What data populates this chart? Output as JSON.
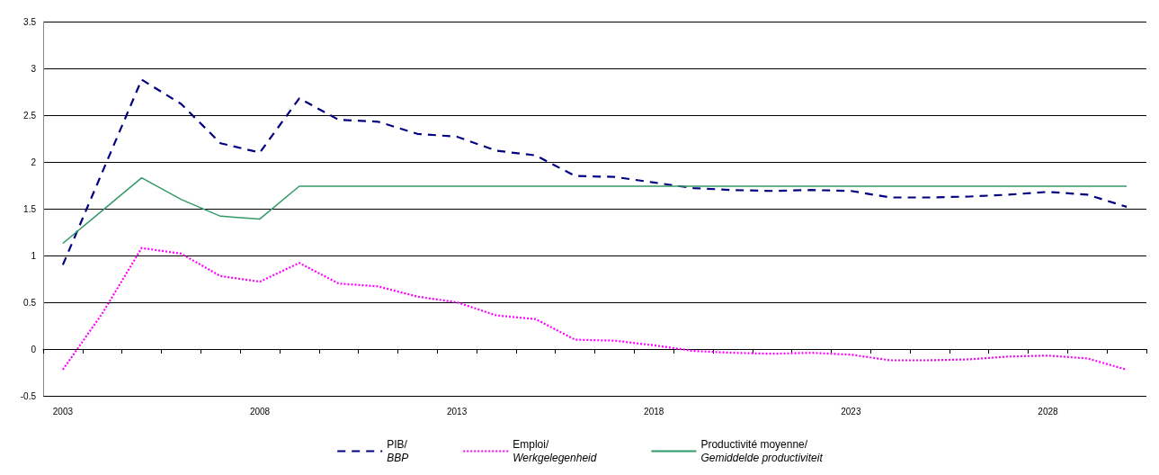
{
  "chart_data": {
    "type": "line",
    "categories": [
      "2003",
      null,
      null,
      null,
      null,
      "2008",
      null,
      null,
      null,
      null,
      "2013",
      null,
      null,
      null,
      null,
      "2018",
      null,
      null,
      null,
      null,
      "2023",
      null,
      null,
      null,
      null,
      "2028",
      null,
      null
    ],
    "series": [
      {
        "name": "PIB/\nBBP",
        "color": "#000080",
        "line_style": "dashed",
        "values": [
          0.9,
          1.89,
          2.88,
          2.62,
          2.2,
          2.1,
          2.68,
          2.45,
          2.43,
          2.3,
          2.27,
          2.12,
          2.07,
          1.85,
          1.84,
          1.78,
          1.72,
          1.7,
          1.69,
          1.7,
          1.69,
          1.62,
          1.62,
          1.63,
          1.65,
          1.68,
          1.65,
          1.52
        ]
      },
      {
        "name": "Emploi/\nWerkgelegenheid",
        "color": "#ff00ff",
        "line_style": "dotted",
        "values": [
          -0.22,
          0.38,
          1.08,
          1.02,
          0.78,
          0.72,
          0.92,
          0.7,
          0.67,
          0.56,
          0.5,
          0.36,
          0.32,
          0.1,
          0.09,
          0.04,
          -0.02,
          -0.04,
          -0.05,
          -0.04,
          -0.06,
          -0.12,
          -0.12,
          -0.11,
          -0.08,
          -0.07,
          -0.1,
          -0.22
        ]
      },
      {
        "name": "Productivité moyenne/\nGemiddelde productiviteit",
        "color": "#339966",
        "line_style": "solid",
        "values": [
          1.13,
          1.48,
          1.83,
          1.6,
          1.42,
          1.39,
          1.74,
          1.74,
          1.74,
          1.74,
          1.74,
          1.74,
          1.74,
          1.74,
          1.74,
          1.74,
          1.74,
          1.74,
          1.74,
          1.74,
          1.74,
          1.74,
          1.74,
          1.74,
          1.74,
          1.74,
          1.74,
          1.74
        ]
      }
    ],
    "ylim": [
      -0.5,
      3.5
    ],
    "yticks": [
      -0.5,
      0,
      0.5,
      1,
      1.5,
      2,
      2.5,
      3,
      3.5
    ],
    "grid": "y",
    "legend": "bottom",
    "marker": "none"
  }
}
